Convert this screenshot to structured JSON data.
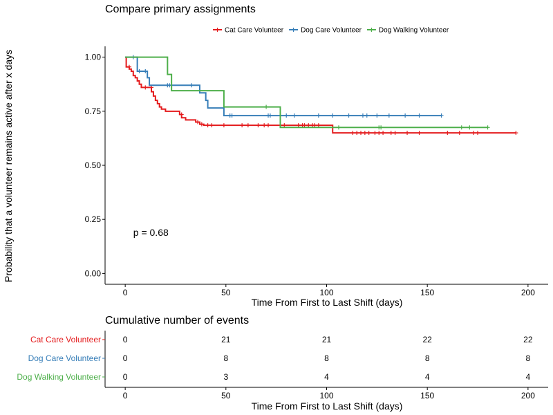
{
  "chart_data": [
    {
      "type": "line",
      "subtype": "kaplan-meier step",
      "title": "Compare primary assignments",
      "xlabel": "Time From First to Last Shift (days)",
      "ylabel": "Probability that a volunteer remains active after x days",
      "xlim": [
        -10,
        210
      ],
      "ylim": [
        -0.05,
        1.05
      ],
      "x_ticks": [
        0,
        50,
        100,
        150,
        200
      ],
      "y_ticks": [
        0.0,
        0.25,
        0.5,
        0.75,
        1.0
      ],
      "y_tick_labels": [
        "0.00",
        "0.25",
        "0.50",
        "0.75",
        "1.00"
      ],
      "grid": false,
      "legend_position": "top",
      "annotation": "p = 0.68",
      "annotation_at": [
        4,
        0.19
      ],
      "series": [
        {
          "name": "Cat Care Volunteer",
          "color": "#E41A1C",
          "steps": [
            [
              0,
              1.0
            ],
            [
              0.5,
              0.955
            ],
            [
              2,
              0.945
            ],
            [
              3,
              0.935
            ],
            [
              4,
              0.915
            ],
            [
              5,
              0.905
            ],
            [
              6,
              0.89
            ],
            [
              7,
              0.875
            ],
            [
              8,
              0.86
            ],
            [
              10,
              0.86
            ],
            [
              13,
              0.84
            ],
            [
              14,
              0.82
            ],
            [
              15,
              0.8
            ],
            [
              16,
              0.785
            ],
            [
              17,
              0.77
            ],
            [
              18,
              0.76
            ],
            [
              20,
              0.75
            ],
            [
              27,
              0.735
            ],
            [
              28,
              0.72
            ],
            [
              30,
              0.71
            ],
            [
              35,
              0.7
            ],
            [
              37,
              0.69
            ],
            [
              39,
              0.685
            ],
            [
              103,
              0.65
            ],
            [
              194,
              0.65
            ]
          ],
          "censored": [
            [
              2,
              0.955
            ],
            [
              10,
              0.86
            ],
            [
              13,
              0.86
            ],
            [
              28,
              0.735
            ],
            [
              36,
              0.7
            ],
            [
              38,
              0.69
            ],
            [
              41,
              0.685
            ],
            [
              43,
              0.685
            ],
            [
              49,
              0.685
            ],
            [
              58,
              0.685
            ],
            [
              61,
              0.685
            ],
            [
              66,
              0.685
            ],
            [
              69,
              0.685
            ],
            [
              71,
              0.685
            ],
            [
              79,
              0.685
            ],
            [
              86,
              0.685
            ],
            [
              88,
              0.685
            ],
            [
              89,
              0.685
            ],
            [
              91,
              0.685
            ],
            [
              93,
              0.685
            ],
            [
              94,
              0.685
            ],
            [
              96,
              0.685
            ],
            [
              113,
              0.65
            ],
            [
              115,
              0.65
            ],
            [
              117,
              0.65
            ],
            [
              119,
              0.65
            ],
            [
              121,
              0.65
            ],
            [
              124,
              0.65
            ],
            [
              126,
              0.65
            ],
            [
              128,
              0.65
            ],
            [
              132,
              0.65
            ],
            [
              134,
              0.65
            ],
            [
              140,
              0.65
            ],
            [
              146,
              0.65
            ],
            [
              160,
              0.65
            ],
            [
              166,
              0.65
            ],
            [
              173,
              0.65
            ],
            [
              175,
              0.65
            ],
            [
              194,
              0.65
            ]
          ]
        },
        {
          "name": "Dog Care Volunteer",
          "color": "#377EB8",
          "steps": [
            [
              0,
              1.0
            ],
            [
              6,
              0.935
            ],
            [
              11,
              0.905
            ],
            [
              12,
              0.87
            ],
            [
              37,
              0.835
            ],
            [
              40,
              0.8
            ],
            [
              41,
              0.765
            ],
            [
              49,
              0.73
            ],
            [
              157,
              0.73
            ]
          ],
          "censored": [
            [
              4,
              1.0
            ],
            [
              7,
              0.935
            ],
            [
              10,
              0.935
            ],
            [
              21,
              0.87
            ],
            [
              22,
              0.87
            ],
            [
              33,
              0.87
            ],
            [
              52,
              0.73
            ],
            [
              53,
              0.73
            ],
            [
              71,
              0.73
            ],
            [
              72,
              0.73
            ],
            [
              80,
              0.73
            ],
            [
              84,
              0.73
            ],
            [
              96,
              0.73
            ],
            [
              103,
              0.73
            ],
            [
              111,
              0.73
            ],
            [
              118,
              0.73
            ],
            [
              120,
              0.73
            ],
            [
              125,
              0.73
            ],
            [
              131,
              0.73
            ],
            [
              139,
              0.73
            ],
            [
              146,
              0.73
            ],
            [
              157,
              0.73
            ]
          ]
        },
        {
          "name": "Dog Walking Volunteer",
          "color": "#4DAF4A",
          "steps": [
            [
              0,
              1.0
            ],
            [
              21,
              0.92
            ],
            [
              23,
              0.845
            ],
            [
              49,
              0.77
            ],
            [
              77,
              0.675
            ],
            [
              180,
              0.675
            ]
          ],
          "censored": [
            [
              70,
              0.77
            ],
            [
              106,
              0.675
            ],
            [
              126,
              0.675
            ],
            [
              127,
              0.675
            ],
            [
              167,
              0.675
            ],
            [
              171,
              0.675
            ],
            [
              180,
              0.675
            ]
          ]
        }
      ]
    },
    {
      "type": "table",
      "title": "Cumulative number of events",
      "xlabel": "Time From First to Last Shift (days)",
      "x": [
        0,
        50,
        100,
        150,
        200
      ],
      "rows": [
        {
          "name": "Cat Care Volunteer",
          "color": "#E41A1C",
          "values": [
            0,
            21,
            21,
            22,
            22
          ]
        },
        {
          "name": "Dog Care Volunteer",
          "color": "#377EB8",
          "values": [
            0,
            8,
            8,
            8,
            8
          ]
        },
        {
          "name": "Dog Walking Volunteer",
          "color": "#4DAF4A",
          "values": [
            0,
            3,
            4,
            4,
            4
          ]
        }
      ]
    }
  ]
}
